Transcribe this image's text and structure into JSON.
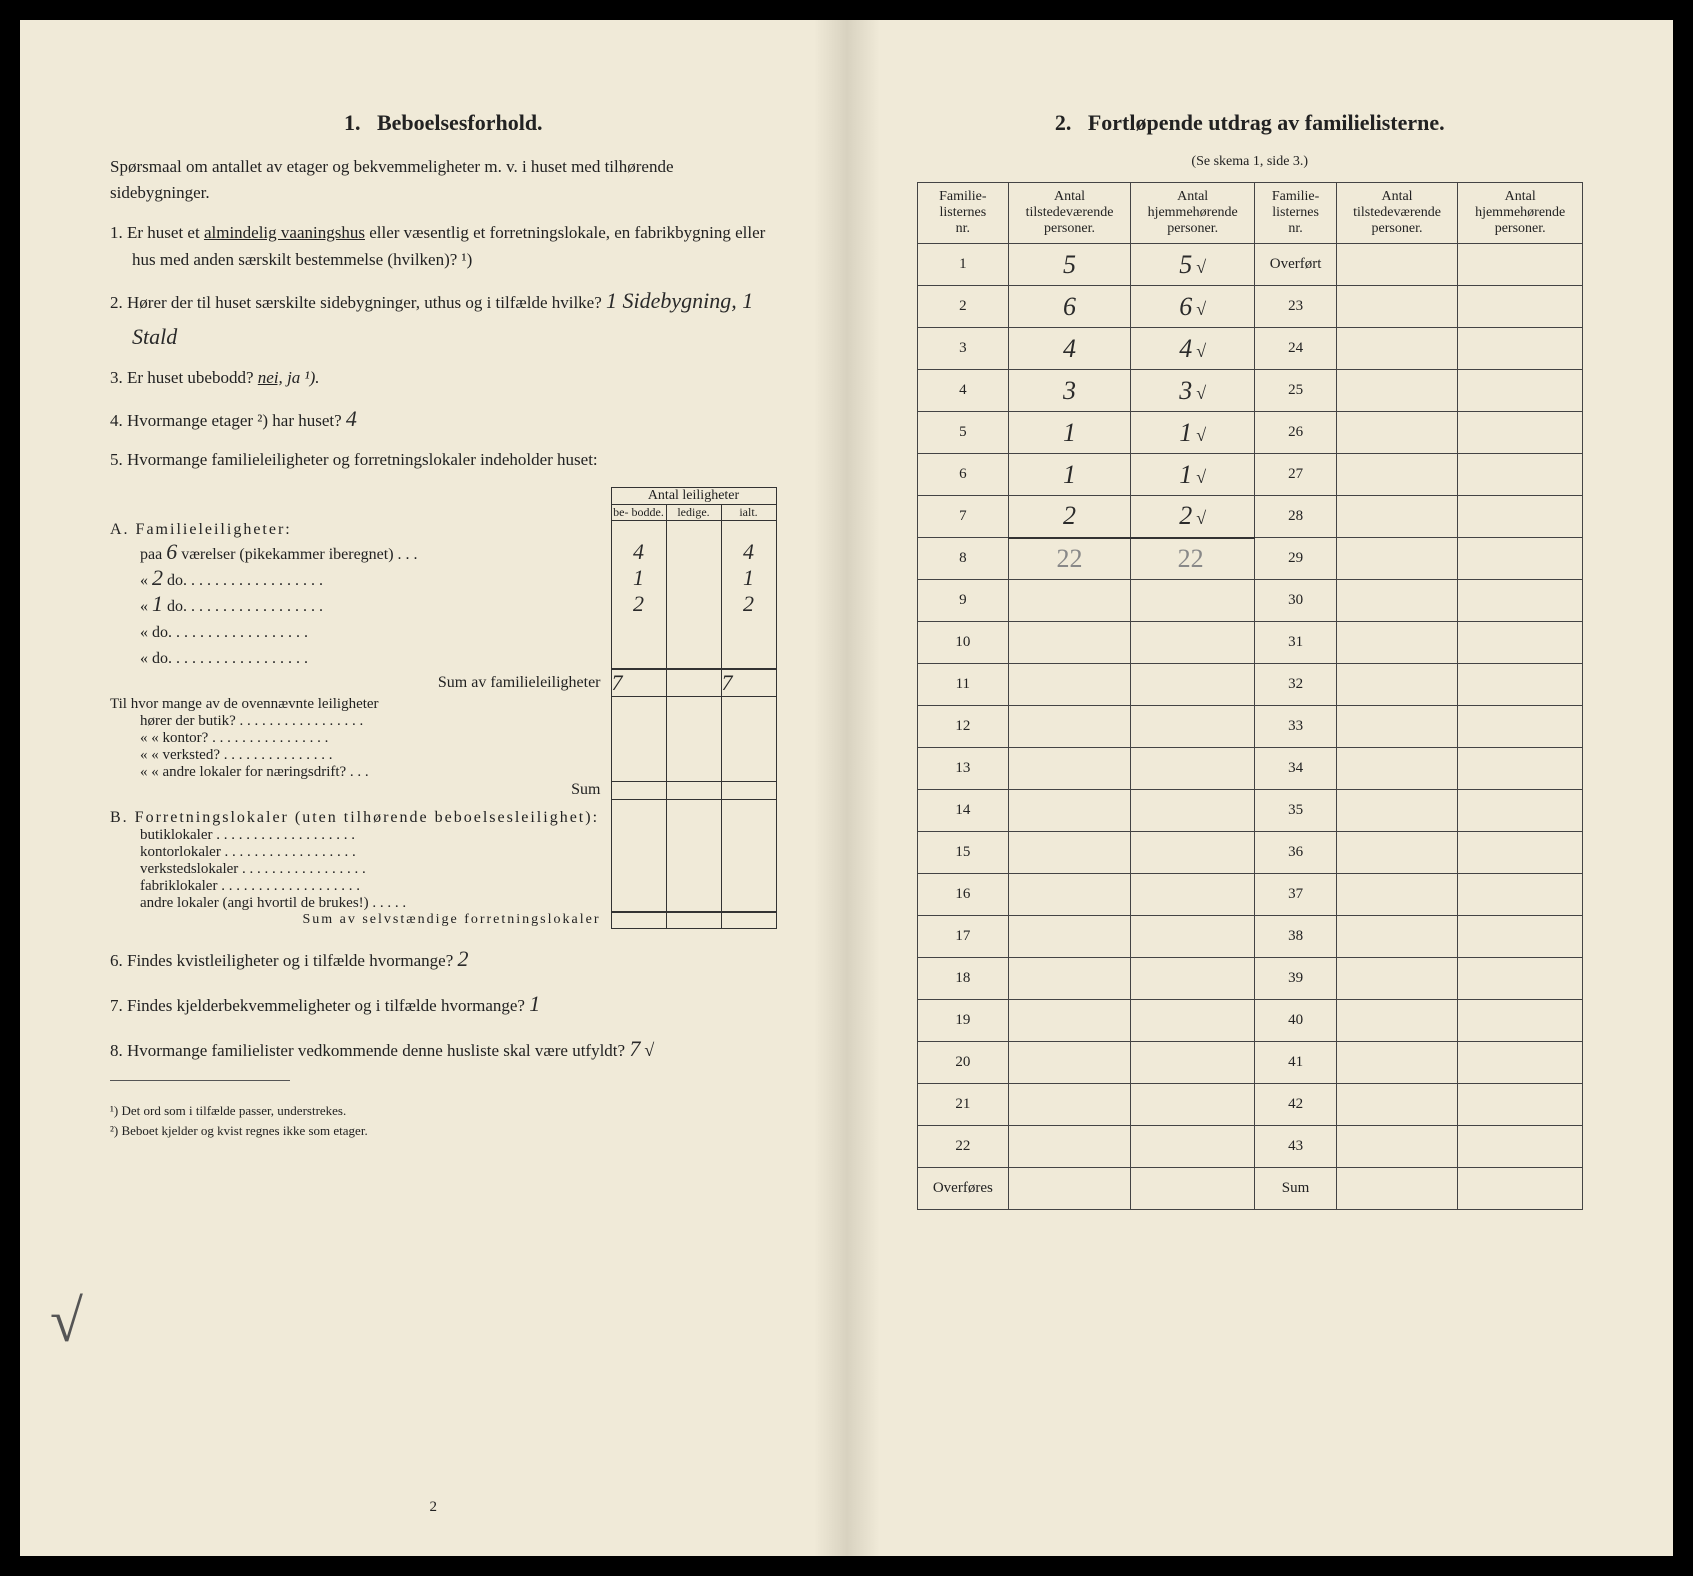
{
  "left": {
    "title_num": "1.",
    "title": "Beboelsesforhold.",
    "intro": "Spørsmaal om antallet av etager og bekvemmeligheter m. v. i huset med tilhørende sidebygninger.",
    "q1": "Er huset et almindelig vaaningshus eller væsentlig et forretningslokale, en fabrikbygning eller hus med anden særskilt bestemmelse (hvilken)? ¹)",
    "q1_underline": "almindelig vaaningshus",
    "q2": "Hører der til huset særskilte sidebygninger, uthus og i tilfælde hvilke?",
    "q2_hand": "1 Sidebygning, 1 Stald",
    "q3": "Er huset ubebodd?",
    "q3_nei": "nei,",
    "q3_ja": "ja ¹).",
    "q4": "Hvormange etager ²) har huset?",
    "q4_hand": "4",
    "q5": "Hvormange familieleiligheter og forretningslokaler indeholder huset:",
    "tbl_header": "Antal leiligheter",
    "tbl_cols": [
      "be-\nbodde.",
      "ledige.",
      "ialt."
    ],
    "secA_title": "A. Familieleiligheter:",
    "rows_A": [
      {
        "label_pre": "paa",
        "hand_n": "6",
        "label": "værelser (pikekammer iberegnet) . . .",
        "vals": [
          "4",
          "",
          "4"
        ]
      },
      {
        "label_pre": "«",
        "hand_n": "2",
        "label": "do.  . . . . . . . . . . . . . . . . .",
        "vals": [
          "1",
          "",
          "1"
        ]
      },
      {
        "label_pre": "«",
        "hand_n": "1",
        "label": "do.  . . . . . . . . . . . . . . . . .",
        "vals": [
          "2",
          "",
          "2"
        ]
      },
      {
        "label_pre": "«",
        "hand_n": "",
        "label": "do.  . . . . . . . . . . . . . . . . .",
        "vals": [
          "",
          "",
          ""
        ]
      },
      {
        "label_pre": "«",
        "hand_n": "",
        "label": "do.  . . . . . . . . . . . . . . . . .",
        "vals": [
          "",
          "",
          ""
        ]
      }
    ],
    "sumA_label": "Sum av familieleiligheter",
    "sumA_vals": [
      "7",
      "",
      "7"
    ],
    "midblock": [
      "Til hvor mange av de ovennævnte leiligheter",
      "hører der butik? . . . . . . . . . . . . . . . . .",
      "«      «   kontor? . . . . . . . . . . . . . . . .",
      "«      «   verksted? . . . . . . . . . . . . . . .",
      "«      «   andre lokaler for næringsdrift? . . ."
    ],
    "mid_sum": "Sum",
    "secB_title": "B. Forretningslokaler (uten tilhørende beboelsesleilighet):",
    "rows_B": [
      "butiklokaler . . . . . . . . . . . . . . . . . . .",
      "kontorlokaler . . . . . . . . . . . . . . . . . .",
      "verkstedslokaler . . . . . . . . . . . . . . . . .",
      "fabriklokaler . . . . . . . . . . . . . . . . . . .",
      "andre lokaler (angi hvortil de brukes!) . . . . ."
    ],
    "sumB_label": "Sum av selvstændige forretningslokaler",
    "q6": "Findes kvistleiligheter og i tilfælde hvormange?",
    "q6_hand": "2",
    "q7": "Findes kjelderbekvemmeligheter og i tilfælde hvormange?",
    "q7_hand": "1",
    "q8": "Hvormange familielister vedkommende denne husliste skal være utfyldt?",
    "q8_hand": "7",
    "q8_check": "√",
    "fn1": "¹) Det ord som i tilfælde passer, understrekes.",
    "fn2": "²) Beboet kjelder og kvist regnes ikke som etager.",
    "page_num": "2"
  },
  "right": {
    "title_num": "2.",
    "title": "Fortløpende utdrag av familielisterne.",
    "sub": "(Se skema 1, side 3.)",
    "headers": [
      "Familie-\nlisternes\nnr.",
      "Antal\ntilstedeværende\npersoner.",
      "Antal\nhjemmehørende\npersoner.",
      "Familie-\nlisternes\nnr.",
      "Antal\ntilstedeværende\npersoner.",
      "Antal\nhjemmehørende\npersoner."
    ],
    "rows": [
      {
        "n1": "1",
        "v1": "5",
        "v2": "5",
        "c": "√",
        "n2": "Overført",
        "v3": "",
        "v4": ""
      },
      {
        "n1": "2",
        "v1": "6",
        "v2": "6",
        "c": "√",
        "n2": "23",
        "v3": "",
        "v4": ""
      },
      {
        "n1": "3",
        "v1": "4",
        "v2": "4",
        "c": "√",
        "n2": "24",
        "v3": "",
        "v4": ""
      },
      {
        "n1": "4",
        "v1": "3",
        "v2": "3",
        "c": "√",
        "n2": "25",
        "v3": "",
        "v4": ""
      },
      {
        "n1": "5",
        "v1": "1",
        "v2": "1",
        "c": "√",
        "n2": "26",
        "v3": "",
        "v4": ""
      },
      {
        "n1": "6",
        "v1": "1",
        "v2": "1",
        "c": "√",
        "n2": "27",
        "v3": "",
        "v4": ""
      },
      {
        "n1": "7",
        "v1": "2",
        "v2": "2",
        "c": "√",
        "n2": "28",
        "v3": "",
        "v4": ""
      },
      {
        "n1": "8",
        "v1": "22",
        "v2": "22",
        "c": "",
        "n2": "29",
        "v3": "",
        "v4": "",
        "pencil": true
      },
      {
        "n1": "9",
        "v1": "",
        "v2": "",
        "c": "",
        "n2": "30",
        "v3": "",
        "v4": ""
      },
      {
        "n1": "10",
        "v1": "",
        "v2": "",
        "c": "",
        "n2": "31",
        "v3": "",
        "v4": ""
      },
      {
        "n1": "11",
        "v1": "",
        "v2": "",
        "c": "",
        "n2": "32",
        "v3": "",
        "v4": ""
      },
      {
        "n1": "12",
        "v1": "",
        "v2": "",
        "c": "",
        "n2": "33",
        "v3": "",
        "v4": ""
      },
      {
        "n1": "13",
        "v1": "",
        "v2": "",
        "c": "",
        "n2": "34",
        "v3": "",
        "v4": ""
      },
      {
        "n1": "14",
        "v1": "",
        "v2": "",
        "c": "",
        "n2": "35",
        "v3": "",
        "v4": ""
      },
      {
        "n1": "15",
        "v1": "",
        "v2": "",
        "c": "",
        "n2": "36",
        "v3": "",
        "v4": ""
      },
      {
        "n1": "16",
        "v1": "",
        "v2": "",
        "c": "",
        "n2": "37",
        "v3": "",
        "v4": ""
      },
      {
        "n1": "17",
        "v1": "",
        "v2": "",
        "c": "",
        "n2": "38",
        "v3": "",
        "v4": ""
      },
      {
        "n1": "18",
        "v1": "",
        "v2": "",
        "c": "",
        "n2": "39",
        "v3": "",
        "v4": ""
      },
      {
        "n1": "19",
        "v1": "",
        "v2": "",
        "c": "",
        "n2": "40",
        "v3": "",
        "v4": ""
      },
      {
        "n1": "20",
        "v1": "",
        "v2": "",
        "c": "",
        "n2": "41",
        "v3": "",
        "v4": ""
      },
      {
        "n1": "21",
        "v1": "",
        "v2": "",
        "c": "",
        "n2": "42",
        "v3": "",
        "v4": ""
      },
      {
        "n1": "22",
        "v1": "",
        "v2": "",
        "c": "",
        "n2": "43",
        "v3": "",
        "v4": ""
      },
      {
        "n1": "Overføres",
        "v1": "",
        "v2": "",
        "c": "",
        "n2": "Sum",
        "v3": "",
        "v4": ""
      }
    ]
  }
}
